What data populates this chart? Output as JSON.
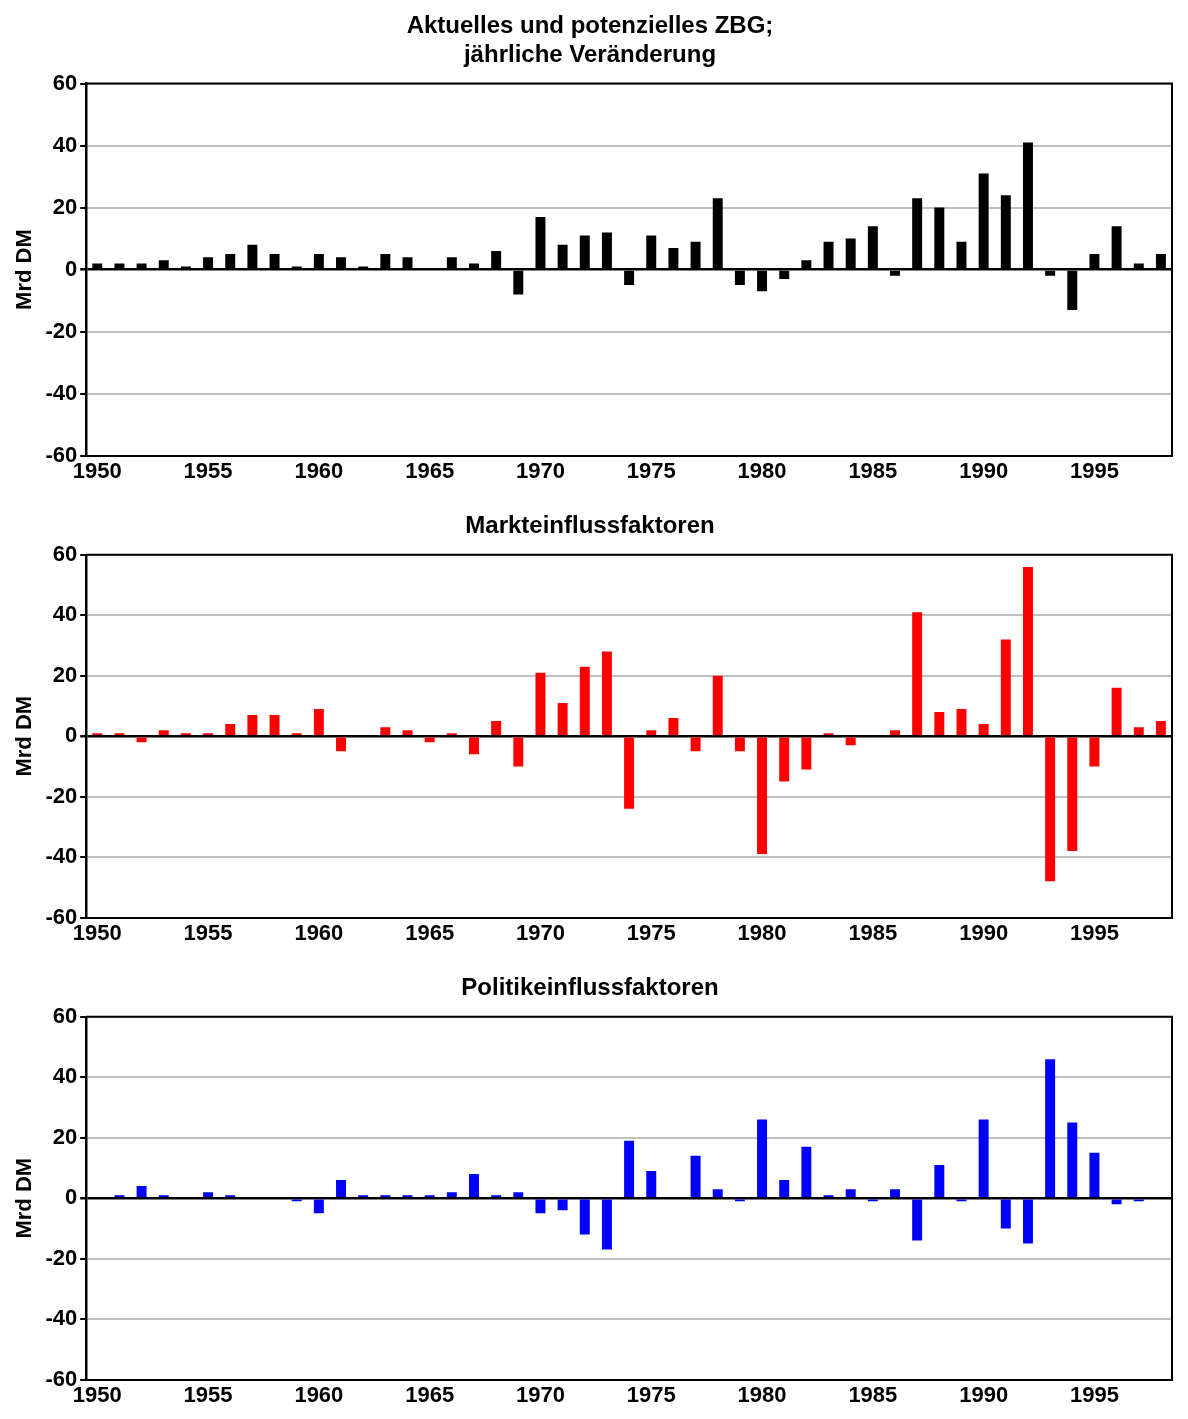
{
  "chart_data": [
    {
      "type": "bar",
      "title": "Aktuelles und potenzielles ZBG;\njährliche Veränderung",
      "ylabel": "Mrd DM",
      "categories": [
        "1950",
        null,
        null,
        null,
        null,
        "1955",
        null,
        null,
        null,
        null,
        "1960",
        null,
        null,
        null,
        null,
        "1965",
        null,
        null,
        null,
        null,
        "1970",
        null,
        null,
        null,
        null,
        "1975",
        null,
        null,
        null,
        null,
        "1980",
        null,
        null,
        null,
        null,
        "1985",
        null,
        null,
        null,
        null,
        "1990",
        null,
        null,
        null,
        null,
        "1995",
        null,
        null,
        null
      ],
      "color": "#000000",
      "values": [
        2,
        2,
        2,
        3,
        1,
        4,
        5,
        8,
        5,
        1,
        5,
        4,
        1,
        5,
        4,
        0,
        4,
        2,
        6,
        -8,
        17,
        8,
        11,
        12,
        -5,
        11,
        7,
        9,
        23,
        -5,
        -7,
        -3,
        3,
        9,
        10,
        14,
        -2,
        23,
        20,
        9,
        31,
        24,
        41,
        -2,
        -13,
        5,
        14,
        2,
        5
      ],
      "ylim": [
        -60,
        60
      ],
      "yticks": [
        -60,
        -40,
        -20,
        0,
        20,
        40,
        60
      ],
      "grid": "y"
    },
    {
      "type": "bar",
      "title": "Markteinflussfaktoren",
      "ylabel": "Mrd DM",
      "categories": [
        "1950",
        null,
        null,
        null,
        null,
        "1955",
        null,
        null,
        null,
        null,
        "1960",
        null,
        null,
        null,
        null,
        "1965",
        null,
        null,
        null,
        null,
        "1970",
        null,
        null,
        null,
        null,
        "1975",
        null,
        null,
        null,
        null,
        "1980",
        null,
        null,
        null,
        null,
        "1985",
        null,
        null,
        null,
        null,
        "1990",
        null,
        null,
        null,
        null,
        "1995",
        null,
        null,
        null
      ],
      "color": "#ff0000",
      "values": [
        1,
        1,
        -2,
        2,
        1,
        1,
        4,
        7,
        7,
        1,
        9,
        -5,
        0,
        3,
        2,
        -2,
        1,
        -6,
        5,
        -10,
        21,
        11,
        23,
        28,
        -24,
        2,
        6,
        -5,
        20,
        -5,
        -39,
        -15,
        -11,
        1,
        -3,
        0,
        2,
        41,
        8,
        9,
        4,
        32,
        56,
        -48,
        -38,
        -10,
        16,
        3,
        5
      ],
      "ylim": [
        -60,
        60
      ],
      "yticks": [
        -60,
        -40,
        -20,
        0,
        20,
        40,
        60
      ],
      "grid": "y"
    },
    {
      "type": "bar",
      "title": "Politikeinflussfaktoren",
      "ylabel": "Mrd DM",
      "categories": [
        "1950",
        null,
        null,
        null,
        null,
        "1955",
        null,
        null,
        null,
        null,
        "1960",
        null,
        null,
        null,
        null,
        "1965",
        null,
        null,
        null,
        null,
        "1970",
        null,
        null,
        null,
        null,
        "1975",
        null,
        null,
        null,
        null,
        "1980",
        null,
        null,
        null,
        null,
        "1985",
        null,
        null,
        null,
        null,
        "1990",
        null,
        null,
        null,
        null,
        "1995",
        null,
        null,
        null
      ],
      "color": "#0000ff",
      "values": [
        0,
        1,
        4,
        1,
        0,
        2,
        1,
        0,
        0,
        -1,
        -5,
        6,
        1,
        1,
        1,
        1,
        2,
        8,
        1,
        2,
        -5,
        -4,
        -12,
        -17,
        19,
        9,
        0,
        14,
        3,
        -1,
        26,
        6,
        17,
        1,
        3,
        -1,
        3,
        -14,
        11,
        -1,
        26,
        -10,
        -15,
        46,
        25,
        15,
        -2,
        -1,
        0
      ],
      "ylim": [
        -60,
        60
      ],
      "yticks": [
        -60,
        -40,
        -20,
        0,
        20,
        40,
        60
      ],
      "grid": "y"
    }
  ]
}
